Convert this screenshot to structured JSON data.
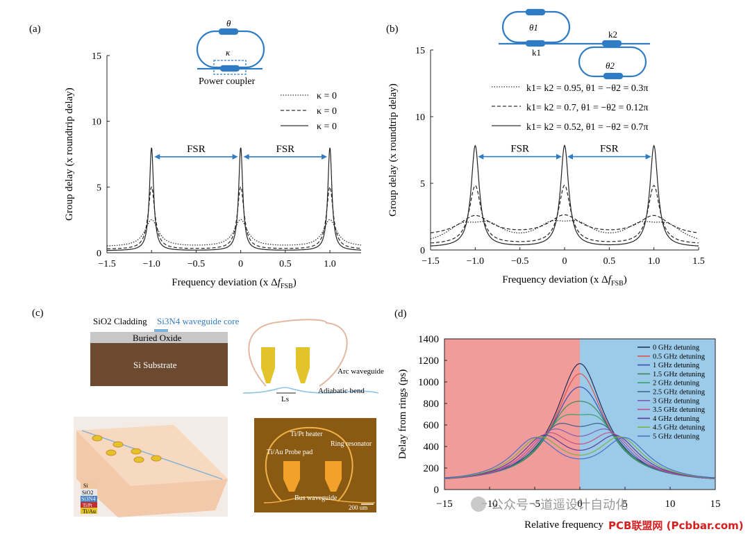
{
  "panels": {
    "a": {
      "label": "(a)"
    },
    "b": {
      "label": "(b)"
    },
    "c": {
      "label": "(c)"
    },
    "d": {
      "label": "(d)"
    }
  },
  "chart_data": [
    {
      "id": "a",
      "type": "line",
      "title": "",
      "xlabel": "Frequency deviation (x Δf_FSB)",
      "ylabel": "Group delay (x roundtrip delay)",
      "xlim": [
        -1.5,
        1.35
      ],
      "ylim": [
        0,
        15
      ],
      "xticks": [
        -1.5,
        -1.0,
        -0.5,
        0,
        0.5,
        1.0
      ],
      "xticklabels": [
        "−1.5",
        "−1.0",
        "−0.5",
        "0",
        "0.5",
        "1.0"
      ],
      "yticks": [
        0,
        5,
        10,
        15
      ],
      "yticklabels": [
        "0",
        "5",
        "10",
        "15"
      ],
      "inset_labels": {
        "theta": "θ",
        "kappa": "κ",
        "coupler": "Power coupler"
      },
      "annotations": {
        "fsr_left": "FSR",
        "fsr_right": "FSR"
      },
      "series": [
        {
          "name": "κ = 0",
          "style": "dotted",
          "peak": 2.5,
          "gamma": 0.09,
          "base": 0.45
        },
        {
          "name": "κ = 0",
          "style": "dashed",
          "peak": 5.0,
          "gamma": 0.045,
          "base": 0.25
        },
        {
          "name": "κ = 0",
          "style": "solid",
          "peak": 8.0,
          "gamma": 0.028,
          "base": 0.15
        }
      ]
    },
    {
      "id": "b",
      "type": "line",
      "title": "",
      "xlabel": "Frequency deviation (x Δf_FSB)",
      "ylabel": "Group delay (x roundtrip delay)",
      "xlim": [
        -1.5,
        1.5
      ],
      "ylim": [
        0,
        15
      ],
      "xticks": [
        -1.5,
        -1.0,
        -0.5,
        0,
        0.5,
        1.0,
        1.5
      ],
      "xticklabels": [
        "−1.5",
        "−1.0",
        "−0.5",
        "0",
        "0.5",
        "1.0",
        "1.5"
      ],
      "yticks": [
        0,
        5,
        10,
        15
      ],
      "yticklabels": [
        "0",
        "5",
        "10",
        "15"
      ],
      "inset_labels": {
        "theta1": "θ1",
        "theta2": "θ2",
        "k1": "k1",
        "k2": "k2"
      },
      "annotations": {
        "fsr_left": "FSR",
        "fsr_right": "FSR"
      },
      "series": [
        {
          "name": "k1= k2 = 0.95, θ1 = −θ2 = 0.3π",
          "style": "dotted",
          "peaks": [
            [
              -0.85,
              1.5,
              0.22
            ],
            [
              -0.15,
              1.5,
              0.22
            ],
            [
              0.15,
              1.5,
              0.22
            ],
            [
              0.85,
              1.5,
              0.22
            ],
            [
              1.15,
              1.5,
              0.22
            ],
            [
              -1.15,
              1.5,
              0.22
            ]
          ],
          "base": 0.3
        },
        {
          "name": "k1= k2 = 0.7, θ1 = −θ2 = 0.12π",
          "style": "dashed",
          "peaks": [
            [
              -1.0,
              2.5,
              0.22
            ],
            [
              0,
              2.5,
              0.22
            ],
            [
              1.0,
              2.5,
              0.22
            ]
          ],
          "base": 1.0
        },
        {
          "name": "k1= k2 = 0.52, θ1 = −θ2 = 0.7π",
          "style": "solid",
          "peaks": [
            [
              -1.0,
              7.8,
              0.055
            ],
            [
              0,
              7.8,
              0.055
            ],
            [
              1.0,
              7.8,
              0.055
            ]
          ],
          "base": 0.2
        },
        {
          "name": "",
          "style": "dashed",
          "peaks": [
            [
              -1.0,
              4.8,
              0.08
            ],
            [
              0,
              4.8,
              0.08
            ],
            [
              1.0,
              4.8,
              0.08
            ]
          ],
          "base": 0.4
        }
      ]
    },
    {
      "id": "d",
      "type": "line",
      "title": "",
      "xlabel": "Relative frequency",
      "ylabel": "Delay from rings (ps)",
      "xlim": [
        -15,
        15
      ],
      "ylim": [
        0,
        1400
      ],
      "xticks": [
        -15,
        -10,
        -5,
        0,
        5,
        10,
        15
      ],
      "xticklabels": [
        "−15",
        "−10",
        "−5",
        "0",
        "5",
        "10",
        "15"
      ],
      "yticks": [
        0,
        200,
        400,
        600,
        800,
        1000,
        1200,
        1400
      ],
      "yticklabels": [
        "0",
        "200",
        "400",
        "600",
        "800",
        "1000",
        "1200",
        "1400"
      ],
      "background": {
        "left": "#f29b9b",
        "right": "#9ccbea"
      },
      "series": [
        {
          "name": "0 GHz detuning",
          "detuning": 0.0,
          "color": "#1f2a52"
        },
        {
          "name": "0.5 GHz detuning",
          "detuning": 0.5,
          "color": "#d9534f"
        },
        {
          "name": "1 GHz detuning",
          "detuning": 1.0,
          "color": "#3a4fb0"
        },
        {
          "name": "1.5 GHz detuning",
          "detuning": 1.5,
          "color": "#3c8a54"
        },
        {
          "name": "2 GHz detuning",
          "detuning": 2.0,
          "color": "#3aa06a"
        },
        {
          "name": "2.5 GHz detuning",
          "detuning": 2.5,
          "color": "#3a5f8a"
        },
        {
          "name": "3 GHz detuning",
          "detuning": 3.0,
          "color": "#7b5fb5"
        },
        {
          "name": "3.5 GHz detuning",
          "detuning": 3.5,
          "color": "#c0508a"
        },
        {
          "name": "4 GHz detuning",
          "detuning": 4.0,
          "color": "#5a3a9a"
        },
        {
          "name": "4.5 GHz detuning",
          "detuning": 4.5,
          "color": "#7fb04a"
        },
        {
          "name": "5 GHz detuning",
          "detuning": 5.0,
          "color": "#4a6fc0"
        }
      ]
    }
  ],
  "panel_c": {
    "cross_section": {
      "cladding": "SiO2 Cladding",
      "core": "Si3N4 waveguide core",
      "oxide": "Buried Oxide",
      "substrate": "Si Substrate"
    },
    "layout": {
      "arc": "Arc waveguide",
      "bend": "Adiabatic bend",
      "ls": "Ls"
    },
    "stack_legend": [
      "Si",
      "SiO2",
      "Si3N4",
      "Ti/Pt",
      "Ti/Au"
    ],
    "micro": {
      "heater": "Ti/Pt heater",
      "ring": "Ring resonator",
      "pad": "Ti/Au Probe pad",
      "bus": "Bus waveguide",
      "scale": "200 um"
    }
  },
  "watermark": {
    "text": "公众号 · 道遥设计自动化",
    "site": "PCB联盟网 (Pcbbar.com)"
  }
}
